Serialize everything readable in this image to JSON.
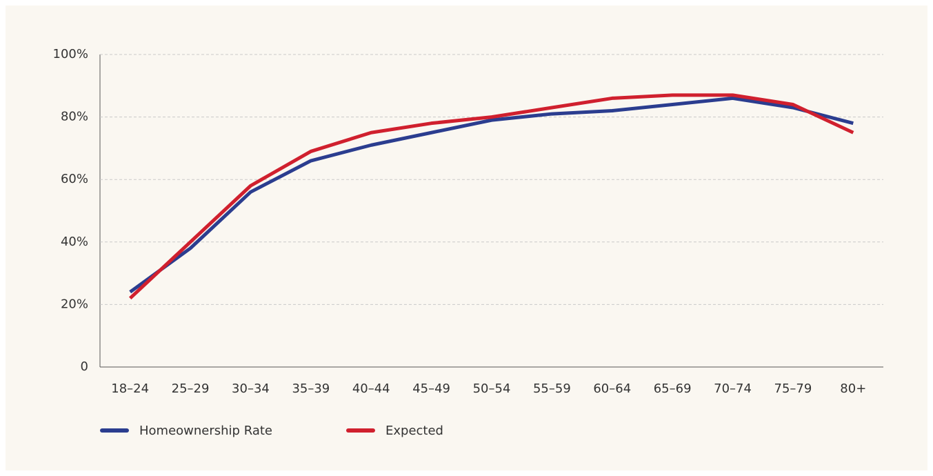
{
  "chart_data": {
    "type": "line",
    "categories": [
      "18–24",
      "25–29",
      "30–34",
      "35–39",
      "40–44",
      "45–49",
      "50–54",
      "55–59",
      "60–64",
      "65–69",
      "70–74",
      "75–79",
      "80+"
    ],
    "series": [
      {
        "name": "Homeownership Rate",
        "color": "#2b3d8f",
        "values": [
          24,
          38,
          56,
          66,
          71,
          75,
          79,
          81,
          82,
          84,
          86,
          83,
          78
        ]
      },
      {
        "name": "Expected",
        "color": "#d0202e",
        "values": [
          22,
          40,
          58,
          69,
          75,
          78,
          80,
          83,
          86,
          87,
          87,
          84,
          75
        ]
      }
    ],
    "ylim": [
      0,
      100
    ],
    "yticks": [
      0,
      {
        "value": 20,
        "label": "20%"
      },
      {
        "value": 40,
        "label": "40%"
      },
      {
        "value": 60,
        "label": "60%"
      },
      {
        "value": 80,
        "label": "80%"
      },
      {
        "value": 100,
        "label": "100%"
      }
    ],
    "grid": true
  }
}
